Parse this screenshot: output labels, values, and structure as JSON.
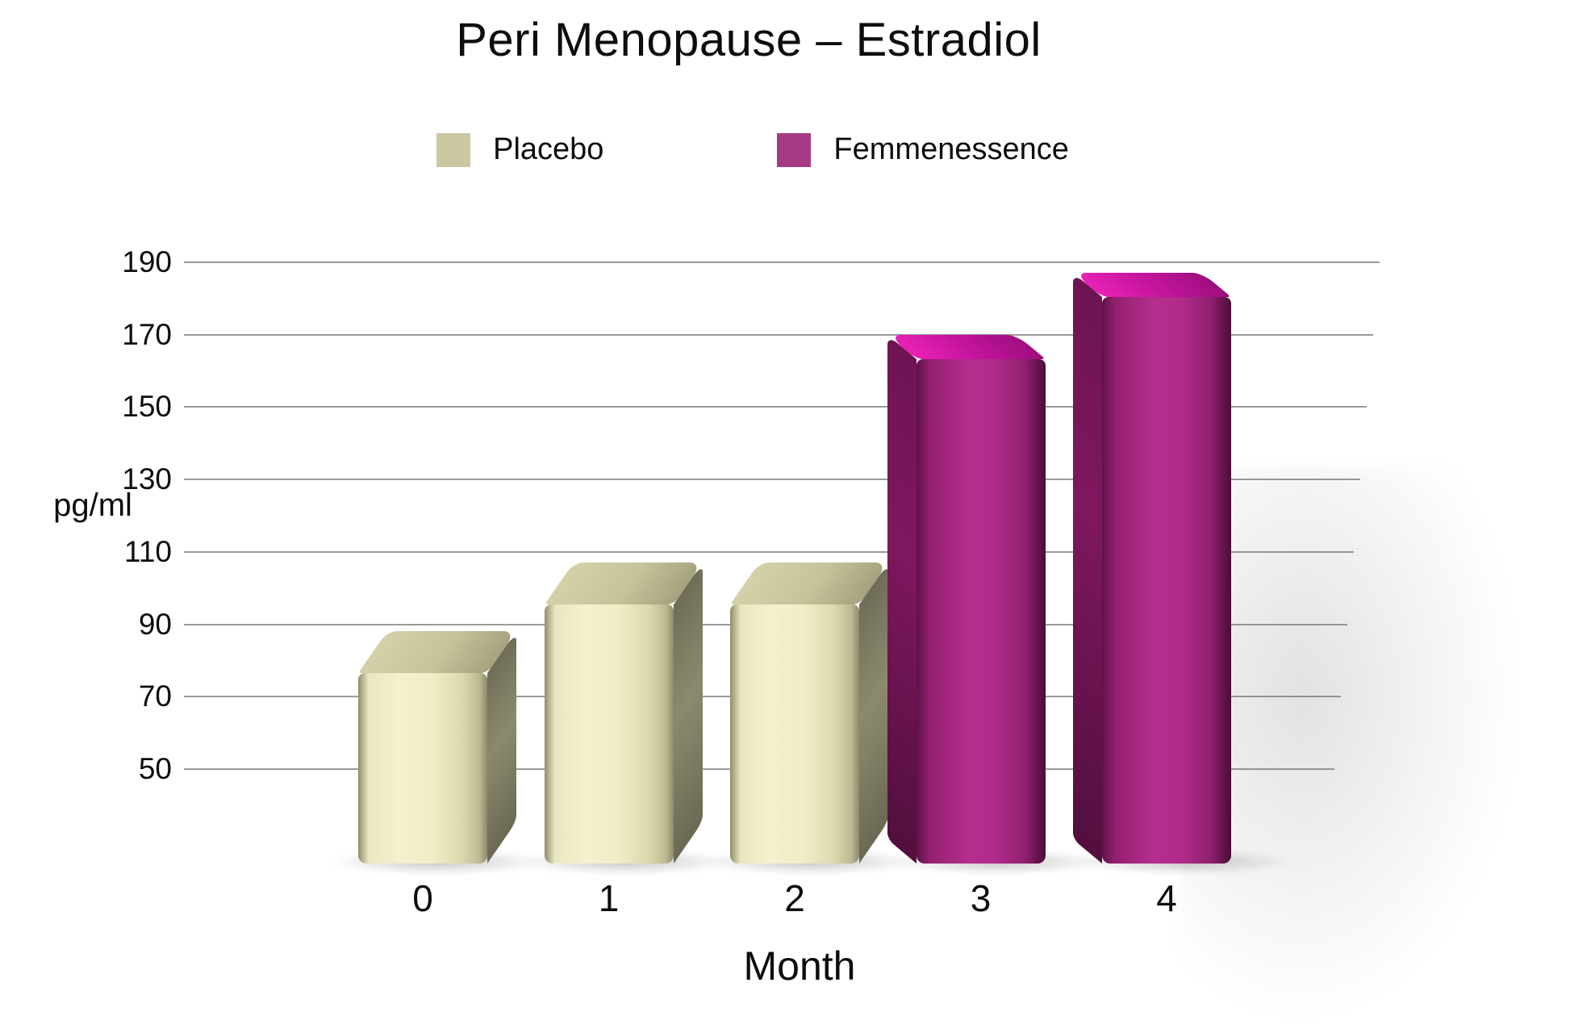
{
  "title": "Peri Menopause – Estradiol",
  "legend": {
    "items": [
      {
        "label": "Placebo",
        "color": "#cbc8a1"
      },
      {
        "label": "Femmenessence",
        "color": "#a63a85"
      }
    ]
  },
  "axes": {
    "y_unit_label": "pg/ml",
    "x_axis_label": "Month",
    "y_tick_labels": [
      "190",
      "170",
      "150",
      "130",
      "110",
      "90",
      "70",
      "50"
    ],
    "x_tick_labels": [
      "0",
      "1",
      "2",
      "3",
      "4"
    ]
  },
  "colors": {
    "background": "#ffffff",
    "text": "#0d0d0d",
    "gridline": "#9a9a9a",
    "placebo": "#cbc8a1",
    "femmenessence": "#a63a85"
  },
  "chart_data": {
    "type": "bar",
    "title": "Peri Menopause – Estradiol",
    "xlabel": "Month",
    "ylabel": "pg/ml",
    "categories": [
      "0",
      "1",
      "2",
      "3",
      "4"
    ],
    "yticks": [
      190,
      170,
      150,
      130,
      110,
      90,
      70,
      50
    ],
    "ylim": [
      30,
      200
    ],
    "grid": true,
    "legend_position": "top",
    "series": [
      {
        "name": "Placebo",
        "color": "#cbc8a1",
        "values": [
          88,
          107,
          107,
          null,
          null
        ]
      },
      {
        "name": "Femmenessence",
        "color": "#a63a85",
        "values": [
          null,
          null,
          null,
          170,
          187
        ]
      }
    ],
    "bars": [
      {
        "category": "0",
        "series": "Placebo",
        "value": 88
      },
      {
        "category": "1",
        "series": "Placebo",
        "value": 107
      },
      {
        "category": "2",
        "series": "Placebo",
        "value": 107
      },
      {
        "category": "3",
        "series": "Femmenessence",
        "value": 170
      },
      {
        "category": "4",
        "series": "Femmenessence",
        "value": 187
      }
    ]
  }
}
